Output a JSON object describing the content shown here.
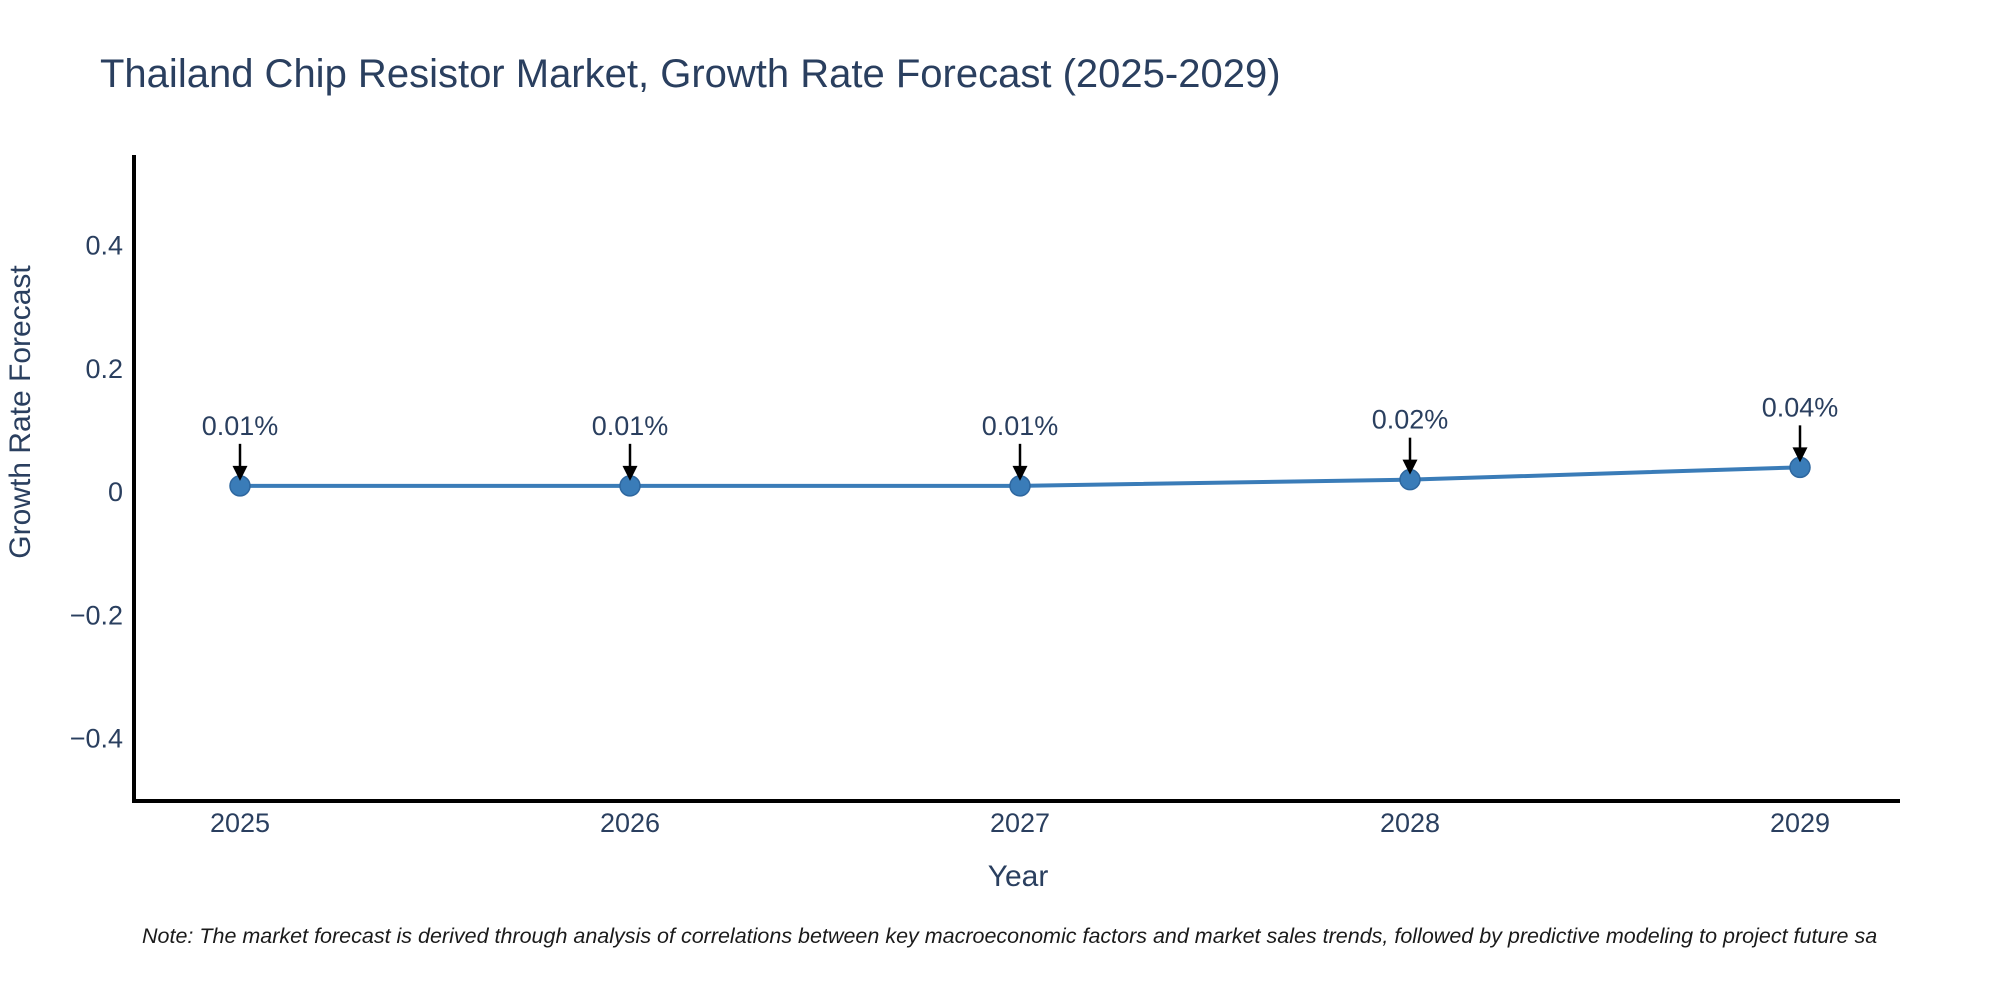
{
  "chart_data": {
    "type": "line",
    "title": "Thailand Chip Resistor Market, Growth Rate Forecast (2025-2029)",
    "xlabel": "Year",
    "ylabel": "Growth Rate Forecast",
    "categories": [
      "2025",
      "2026",
      "2027",
      "2028",
      "2029"
    ],
    "series": [
      {
        "name": "Growth Rate Forecast",
        "values": [
          0.01,
          0.01,
          0.01,
          0.02,
          0.04
        ],
        "point_labels": [
          "0.01%",
          "0.01%",
          "0.01%",
          "0.02%",
          "0.04%"
        ]
      }
    ],
    "yticks": {
      "values": [
        0.4,
        0.2,
        0,
        -0.2,
        -0.4
      ],
      "labels": [
        "0.4",
        "0.2",
        "0",
        "−0.2",
        "−0.4"
      ]
    },
    "ylim": [
      -0.5,
      0.55
    ],
    "grid": false,
    "legend": false,
    "annotation_style": "value labels with black down-arrows pointing to markers",
    "note": "Note: The market forecast is derived through analysis of correlations between key macroeconomic factors and market sales trends, followed by predictive modeling to project future sa",
    "colors": {
      "line": "#3a7cb8",
      "marker": "#3a7cb8",
      "marker_edge": "#2e679f",
      "arrow": "#000000",
      "text": "#2a3f5f",
      "axis": "#000000",
      "note_text": "#1a1a1a",
      "background": "#ffffff"
    }
  }
}
